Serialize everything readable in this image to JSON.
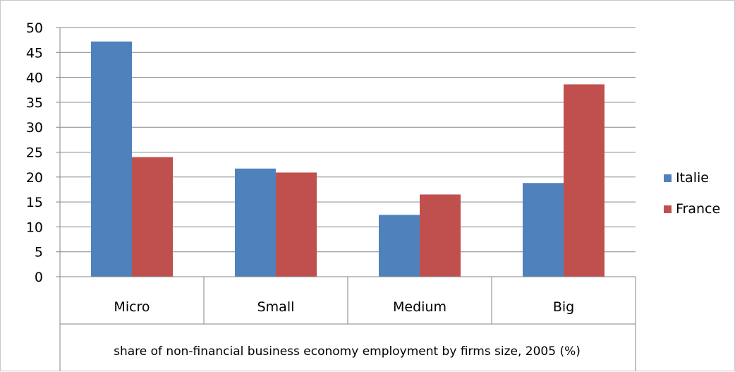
{
  "chart_data": {
    "type": "bar",
    "title": "",
    "categories": [
      "Micro",
      "Small",
      "Medium",
      "Big"
    ],
    "series": [
      {
        "name": "Italie",
        "values": [
          47.2,
          21.7,
          12.4,
          18.8
        ],
        "color": "#4f81bd"
      },
      {
        "name": "France",
        "values": [
          24.0,
          20.9,
          16.5,
          38.6
        ],
        "color": "#c0504d"
      }
    ],
    "xlabel": "share of non-financial business economy employment by firms size, 2005 (%)",
    "ylabel": "",
    "ylim": [
      0,
      50
    ],
    "yticks": [
      0,
      5,
      10,
      15,
      20,
      25,
      30,
      35,
      40,
      45,
      50
    ],
    "grid": true,
    "legend_position": "right"
  }
}
